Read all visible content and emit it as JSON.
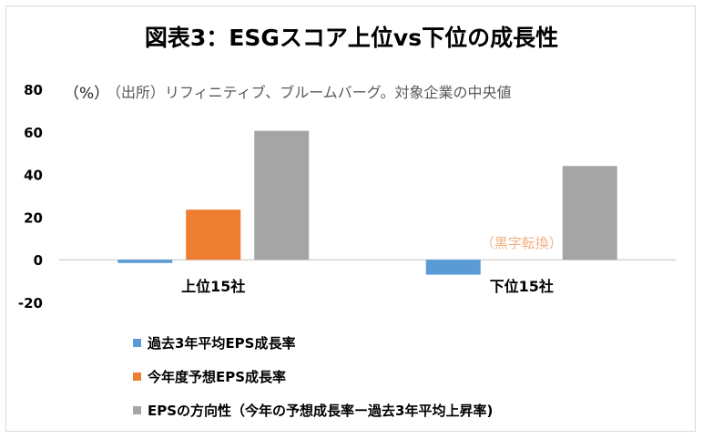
{
  "chart_data": {
    "type": "bar",
    "title": "図表3：ESGスコア上位vs下位の成長性",
    "unit_label": "（%）",
    "source_note": "（出所）リフィニティブ、ブルームバーグ。対象企業の中央値",
    "categories": [
      "上位15社",
      "下位15社"
    ],
    "ylim": [
      -20,
      80
    ],
    "yticks": [
      80,
      60,
      40,
      20,
      0,
      -20
    ],
    "grid": false,
    "legend_position": "bottom-left",
    "series": [
      {
        "name": "過去3年平均EPS成長率",
        "color": "#5b9bd5",
        "values": [
          -1.5,
          -7
        ]
      },
      {
        "name": "今年度予想EPS成長率",
        "color": "#ed7d31",
        "values": [
          23.5,
          null
        ]
      },
      {
        "name": "EPSの方向性（今年の予想成長率ー過去3年平均上昇率)",
        "color": "#a5a5a5",
        "values": [
          60.5,
          44
        ]
      }
    ],
    "annotations": [
      {
        "text": "（黒字転換）",
        "color": "#f4b183",
        "category": "下位15社",
        "series": "今年度予想EPS成長率"
      }
    ]
  }
}
